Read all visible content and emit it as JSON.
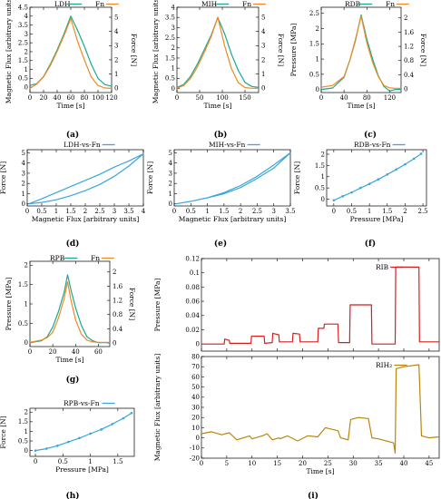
{
  "colors": {
    "teal": "#1aa890",
    "orange": "#f08a24",
    "blue": "#3aa6dc",
    "red": "#d42020",
    "brown": "#b8860b"
  },
  "chart_data": [
    {
      "panel": "(a)",
      "type": "line",
      "xlabel": "Time [s]",
      "ylabel": "Magnetic Flux [arbitrary units]",
      "y2label": "Force [N]",
      "xlim": [
        0,
        120
      ],
      "ylim": [
        -0.3,
        4.5
      ],
      "y2lim": [
        -0.3,
        5.7
      ],
      "xticks": [
        0,
        20,
        40,
        60,
        80,
        100,
        120
      ],
      "yticks": [
        0,
        0.5,
        1,
        1.5,
        2,
        2.5,
        3,
        3.5,
        4,
        4.5
      ],
      "y2ticks": [
        0,
        1,
        2,
        3,
        4,
        5
      ],
      "legend": "top",
      "series": [
        {
          "name": "LDH",
          "axis": "left",
          "color": "teal",
          "x": [
            0,
            10,
            20,
            30,
            40,
            50,
            60,
            70,
            80,
            90,
            100,
            110,
            120
          ],
          "y": [
            0.1,
            0.2,
            0.6,
            1.3,
            2.1,
            3.0,
            4.0,
            3.2,
            2.3,
            1.3,
            0.5,
            0.15,
            0.05
          ]
        },
        {
          "name": "Fn",
          "axis": "right",
          "color": "orange",
          "x": [
            0,
            10,
            20,
            30,
            40,
            50,
            60,
            70,
            80,
            90,
            100,
            110,
            120
          ],
          "y": [
            0.0,
            0.3,
            0.8,
            1.6,
            2.6,
            3.7,
            4.9,
            3.3,
            2.0,
            0.8,
            0.2,
            0.02,
            0.0
          ]
        }
      ]
    },
    {
      "panel": "(b)",
      "type": "line",
      "xlabel": "Time [s]",
      "ylabel": "Magnetic Flux [arbitrary units]",
      "y2label": "Force [N]",
      "xlim": [
        0,
        180
      ],
      "ylim": [
        -0.2,
        4.0
      ],
      "y2lim": [
        -0.3,
        5.7
      ],
      "xticks": [
        0,
        50,
        100,
        150
      ],
      "yticks": [
        0,
        0.5,
        1,
        1.5,
        2,
        2.5,
        3,
        3.5,
        4
      ],
      "y2ticks": [
        0,
        1,
        2,
        3,
        4,
        5
      ],
      "legend": "top",
      "series": [
        {
          "name": "MIH",
          "axis": "left",
          "color": "teal",
          "x": [
            0,
            15,
            30,
            45,
            60,
            75,
            90,
            105,
            120,
            135,
            150,
            165,
            180
          ],
          "y": [
            0.05,
            0.2,
            0.6,
            1.2,
            1.9,
            2.6,
            3.5,
            2.7,
            1.7,
            0.9,
            0.3,
            0.1,
            0.05
          ]
        },
        {
          "name": "Fn",
          "axis": "right",
          "color": "orange",
          "x": [
            0,
            15,
            30,
            45,
            60,
            75,
            90,
            105,
            120,
            135,
            150,
            165,
            180
          ],
          "y": [
            0.0,
            0.2,
            0.7,
            1.5,
            2.5,
            3.6,
            5.0,
            3.0,
            1.4,
            0.4,
            0.05,
            0.0,
            0.0
          ]
        }
      ]
    },
    {
      "panel": "(c)",
      "type": "line",
      "xlabel": "Time [s]",
      "ylabel": "Pressure [MPa]",
      "y2label": "Force [N]",
      "xlim": [
        0,
        140
      ],
      "ylim": [
        -0.1,
        2.7
      ],
      "y2lim": [
        -0.1,
        2.3
      ],
      "xticks": [
        0,
        40,
        80,
        120
      ],
      "yticks": [
        0,
        0.5,
        1,
        1.5,
        2,
        2.5
      ],
      "y2ticks": [
        0,
        0.4,
        0.8,
        1.2,
        1.6,
        2
      ],
      "legend": "top",
      "series": [
        {
          "name": "RDB",
          "axis": "left",
          "color": "teal",
          "x": [
            0,
            20,
            40,
            50,
            60,
            70,
            80,
            90,
            100,
            110,
            120,
            130,
            140
          ],
          "y": [
            0.0,
            0.05,
            0.4,
            0.95,
            1.6,
            2.45,
            1.65,
            1.0,
            0.45,
            0.1,
            -0.05,
            0.0,
            0.0
          ]
        },
        {
          "name": "Fn",
          "axis": "right",
          "color": "orange",
          "x": [
            0,
            20,
            40,
            50,
            60,
            70,
            80,
            90,
            100,
            110,
            120,
            130,
            140
          ],
          "y": [
            0.05,
            0.1,
            0.35,
            0.8,
            1.4,
            2.05,
            1.3,
            0.75,
            0.35,
            0.1,
            0.03,
            0.02,
            0.02
          ]
        }
      ]
    },
    {
      "panel": "(d)",
      "type": "line",
      "xlabel": "Magnetic Flux [arbitrary units]",
      "ylabel": "Force [N]",
      "xlim": [
        0,
        4
      ],
      "ylim": [
        -0.2,
        5.3
      ],
      "xticks": [
        0,
        0.5,
        1,
        1.5,
        2,
        2.5,
        3,
        3.5,
        4
      ],
      "yticks": [
        0,
        1,
        2,
        3,
        4,
        5
      ],
      "legend": "top",
      "series": [
        {
          "name": "LDH-vs-Fn",
          "color": "blue",
          "x": [
            0.05,
            0.5,
            1,
            1.5,
            2,
            2.5,
            3,
            3.5,
            4,
            3.5,
            3,
            2.5,
            2,
            1.5,
            1,
            0.5,
            0.05
          ],
          "y": [
            0.0,
            0.15,
            0.4,
            0.8,
            1.3,
            1.9,
            2.7,
            3.7,
            4.9,
            4.2,
            3.6,
            2.9,
            2.3,
            1.7,
            1.1,
            0.5,
            0.0
          ]
        }
      ]
    },
    {
      "panel": "(e)",
      "type": "line",
      "xlabel": "Magnetic Flux [arbitrary units]",
      "ylabel": "Force [N]",
      "xlim": [
        0,
        3.5
      ],
      "ylim": [
        -0.2,
        5.3
      ],
      "xticks": [
        0,
        0.5,
        1,
        1.5,
        2,
        2.5,
        3,
        3.5
      ],
      "yticks": [
        0,
        1,
        2,
        3,
        4,
        5
      ],
      "legend": "top",
      "series": [
        {
          "name": "MIH-vs-Fn",
          "color": "blue",
          "x": [
            0.05,
            0.5,
            1,
            1.5,
            2,
            2.5,
            3,
            3.5,
            3,
            2.5,
            2,
            1.5,
            1,
            0.5,
            0.05
          ],
          "y": [
            0.0,
            0.25,
            0.6,
            1.1,
            1.8,
            2.7,
            3.8,
            5.0,
            3.5,
            2.5,
            1.6,
            1.0,
            0.6,
            0.25,
            0.0
          ]
        }
      ]
    },
    {
      "panel": "(f)",
      "type": "scatter",
      "xlabel": "Pressure [MPa]",
      "ylabel": "Force [N]",
      "xlim": [
        -0.2,
        2.6
      ],
      "ylim": [
        -0.3,
        2.2
      ],
      "xticks": [
        0,
        0.5,
        1,
        1.5,
        2,
        2.5
      ],
      "yticks": [
        0,
        0.5,
        1,
        1.5,
        2
      ],
      "legend": "top",
      "series": [
        {
          "name": "RDB-vs-Fn",
          "color": "blue",
          "x": [
            0,
            0.25,
            0.5,
            0.75,
            1,
            1.25,
            1.5,
            1.75,
            2,
            2.25,
            2.45
          ],
          "y": [
            -0.05,
            0.13,
            0.3,
            0.5,
            0.68,
            0.88,
            1.1,
            1.32,
            1.55,
            1.8,
            2.02
          ]
        }
      ]
    },
    {
      "panel": "(g)",
      "type": "line",
      "xlabel": "Time [s]",
      "ylabel": "Pressure [MPa]",
      "y2label": "Force [N]",
      "xlim": [
        0,
        70
      ],
      "ylim": [
        -0.1,
        2.1
      ],
      "y2lim": [
        -0.1,
        2.3
      ],
      "xticks": [
        0,
        20,
        40,
        60
      ],
      "yticks": [
        0,
        0.5,
        1,
        1.5,
        2
      ],
      "y2ticks": [
        0,
        0.4,
        0.8,
        1.2,
        1.6,
        2
      ],
      "legend": "top",
      "series": [
        {
          "name": "RPB",
          "axis": "left",
          "color": "teal",
          "x": [
            0,
            10,
            15,
            20,
            25,
            30,
            33,
            36,
            40,
            45,
            50,
            55,
            60,
            70
          ],
          "y": [
            0.0,
            0.05,
            0.15,
            0.4,
            0.8,
            1.3,
            1.75,
            1.35,
            0.9,
            0.45,
            0.15,
            0.05,
            0.0,
            0.0
          ]
        },
        {
          "name": "Fn",
          "axis": "right",
          "color": "orange",
          "x": [
            0,
            10,
            15,
            20,
            25,
            30,
            33,
            36,
            40,
            45,
            50,
            55,
            60,
            70
          ],
          "y": [
            0.02,
            0.08,
            0.15,
            0.3,
            0.7,
            1.25,
            1.72,
            1.2,
            0.65,
            0.25,
            0.08,
            0.03,
            0.02,
            0.02
          ]
        }
      ]
    },
    {
      "panel": "(h)",
      "type": "scatter",
      "xlabel": "Pressure [MPa]",
      "ylabel": "Force [N]",
      "xlim": [
        -0.1,
        1.8
      ],
      "ylim": [
        -0.3,
        2.2
      ],
      "xticks": [
        0,
        0.5,
        1,
        1.5
      ],
      "yticks": [
        0,
        0.5,
        1,
        1.5,
        2
      ],
      "legend": "top",
      "series": [
        {
          "name": "RPB-vs-Fn",
          "color": "blue",
          "x": [
            0,
            0.2,
            0.4,
            0.6,
            0.8,
            1,
            1.2,
            1.4,
            1.6,
            1.75
          ],
          "y": [
            0.0,
            0.1,
            0.25,
            0.45,
            0.65,
            0.88,
            1.1,
            1.38,
            1.68,
            1.95
          ]
        }
      ]
    },
    {
      "panel": "(i)",
      "type": "line",
      "xlabel": "Time [s]",
      "ylabel": "Pressure [MPa]",
      "xlim": [
        0,
        47
      ],
      "ylim": [
        -0.01,
        0.12
      ],
      "xticks": [
        0,
        5,
        10,
        15,
        20,
        25,
        30,
        35,
        40,
        45
      ],
      "yticks": [
        0,
        0.02,
        0.04,
        0.06,
        0.08,
        0.1,
        0.12
      ],
      "legend": "top-right",
      "series": [
        {
          "name": "RIB",
          "color": "red",
          "x": [
            0,
            4.5,
            4.6,
            5.5,
            5.6,
            9.8,
            9.9,
            12.4,
            12.5,
            14.0,
            14.1,
            15.3,
            15.4,
            18.0,
            18.1,
            19.4,
            19.5,
            23.0,
            23.1,
            24.2,
            24.3,
            27.0,
            27.1,
            29.3,
            29.4,
            33.6,
            33.7,
            38.3,
            38.4,
            43.0,
            43.1,
            47
          ],
          "y": [
            0.0,
            0.0,
            0.007,
            0.005,
            0.001,
            0.001,
            0.011,
            0.011,
            0.001,
            0.002,
            0.015,
            0.013,
            0.003,
            0.003,
            0.015,
            0.014,
            0.003,
            0.003,
            0.022,
            0.022,
            0.028,
            0.028,
            0.002,
            0.002,
            0.055,
            0.055,
            0.0,
            0.0,
            0.108,
            0.108,
            0.003,
            0.003
          ]
        }
      ]
    },
    {
      "panel": "(i)",
      "type": "line",
      "xlabel": "Time [s]",
      "ylabel": "Magnetic Flux [arbitrary units]",
      "xlim": [
        0,
        47
      ],
      "ylim": [
        -20,
        80
      ],
      "xticks": [
        0,
        5,
        10,
        15,
        20,
        25,
        30,
        35,
        40,
        45
      ],
      "yticks": [
        -20,
        -10,
        0,
        10,
        20,
        30,
        40,
        50,
        60,
        70,
        80
      ],
      "legend": "top-right",
      "series": [
        {
          "name": "RIH₂",
          "color": "brown",
          "x": [
            0,
            2,
            4,
            5.5,
            7,
            9.5,
            10,
            12,
            13,
            14,
            15.3,
            15.5,
            17,
            19,
            21,
            23,
            24.5,
            27,
            27.5,
            29,
            29.5,
            31,
            33,
            33.7,
            35,
            38,
            38.3,
            38.5,
            40,
            43,
            43.5,
            45,
            47
          ],
          "y": [
            4,
            6,
            3,
            5,
            -2,
            2,
            -1,
            2,
            4,
            -2,
            0,
            -1,
            2,
            -3,
            2,
            1,
            10,
            7,
            0,
            -2,
            18,
            20,
            19,
            0,
            -1,
            -5,
            -15,
            68,
            70,
            72,
            2,
            0,
            1
          ]
        }
      ]
    }
  ],
  "captions": [
    "(a)",
    "(b)",
    "(c)",
    "(d)",
    "(e)",
    "(f)",
    "(g)",
    "(h)",
    "(i)"
  ]
}
